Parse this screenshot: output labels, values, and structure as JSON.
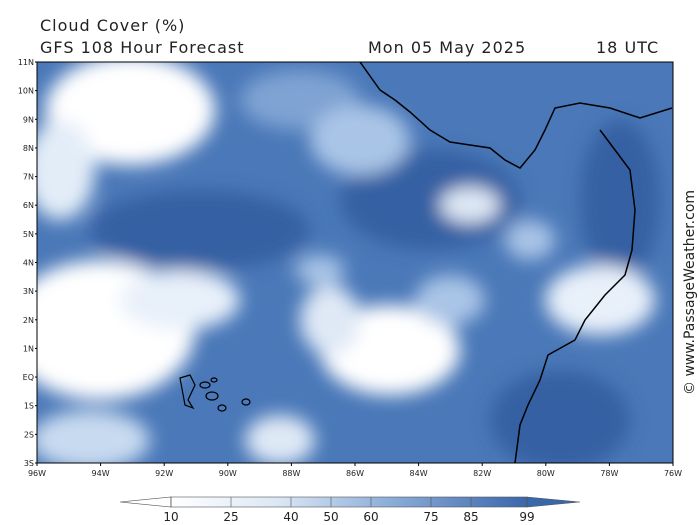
{
  "header": {
    "title": "Cloud Cover (%)",
    "subtitle": "GFS 108 Hour Forecast",
    "date": "Mon 05 May 2025",
    "time": "18 UTC"
  },
  "map": {
    "lat_labels": [
      "11N",
      "10N",
      "9N",
      "8N",
      "7N",
      "6N",
      "5N",
      "4N",
      "3N",
      "2N",
      "1N",
      "EQ",
      "1S",
      "2S",
      "3S"
    ],
    "lon_labels": [
      "96W",
      "94W",
      "92W",
      "90W",
      "88W",
      "86W",
      "84W",
      "82W",
      "80W",
      "78W",
      "76W"
    ]
  },
  "legend": {
    "ticks": [
      10,
      25,
      40,
      50,
      60,
      75,
      85,
      99
    ]
  },
  "watermark": "© www.PassageWeather.com"
}
